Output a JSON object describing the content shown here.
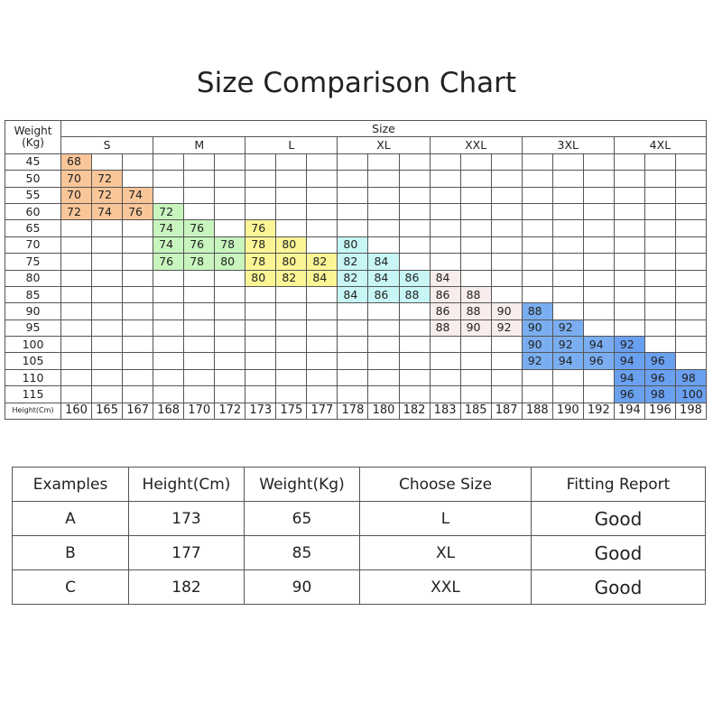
{
  "header": {
    "title": "Size Comparison Chart"
  },
  "grid": {
    "weight_label": "Weight\n(Kg)",
    "size_label": "Size",
    "height_label": "Height(Cm)",
    "sizes": [
      {
        "name": "S",
        "color": "#f9c699"
      },
      {
        "name": "M",
        "color": "#c8f5be"
      },
      {
        "name": "L",
        "color": "#fbf596"
      },
      {
        "name": "XL",
        "color": "#c8f6f6"
      },
      {
        "name": "XXL",
        "color": "#f8ecec"
      },
      {
        "name": "3XL",
        "color": "#7aaef0"
      },
      {
        "name": "4XL",
        "color": "#6aa0f0"
      }
    ],
    "heights": [
      160,
      165,
      167,
      168,
      170,
      172,
      173,
      175,
      177,
      178,
      180,
      182,
      183,
      185,
      187,
      188,
      190,
      192,
      194,
      196,
      198
    ],
    "rows": [
      {
        "weight": 45,
        "values": [
          68,
          null,
          null,
          null,
          null,
          null,
          null,
          null,
          null,
          null,
          null,
          null,
          null,
          null,
          null,
          null,
          null,
          null,
          null,
          null,
          null
        ]
      },
      {
        "weight": 50,
        "values": [
          70,
          72,
          null,
          null,
          null,
          null,
          null,
          null,
          null,
          null,
          null,
          null,
          null,
          null,
          null,
          null,
          null,
          null,
          null,
          null,
          null
        ]
      },
      {
        "weight": 55,
        "values": [
          70,
          72,
          74,
          null,
          null,
          null,
          null,
          null,
          null,
          null,
          null,
          null,
          null,
          null,
          null,
          null,
          null,
          null,
          null,
          null,
          null
        ]
      },
      {
        "weight": 60,
        "values": [
          72,
          74,
          76,
          72,
          null,
          null,
          null,
          null,
          null,
          null,
          null,
          null,
          null,
          null,
          null,
          null,
          null,
          null,
          null,
          null,
          null
        ]
      },
      {
        "weight": 65,
        "values": [
          null,
          null,
          null,
          74,
          76,
          null,
          76,
          null,
          null,
          null,
          null,
          null,
          null,
          null,
          null,
          null,
          null,
          null,
          null,
          null,
          null
        ]
      },
      {
        "weight": 70,
        "values": [
          null,
          null,
          null,
          74,
          76,
          78,
          78,
          80,
          null,
          80,
          null,
          null,
          null,
          null,
          null,
          null,
          null,
          null,
          null,
          null,
          null
        ]
      },
      {
        "weight": 75,
        "values": [
          null,
          null,
          null,
          76,
          78,
          80,
          78,
          80,
          82,
          82,
          84,
          null,
          null,
          null,
          null,
          null,
          null,
          null,
          null,
          null,
          null
        ]
      },
      {
        "weight": 80,
        "values": [
          null,
          null,
          null,
          null,
          null,
          null,
          80,
          82,
          84,
          82,
          84,
          86,
          84,
          null,
          null,
          null,
          null,
          null,
          null,
          null,
          null
        ]
      },
      {
        "weight": 85,
        "values": [
          null,
          null,
          null,
          null,
          null,
          null,
          null,
          null,
          null,
          84,
          86,
          88,
          86,
          88,
          null,
          null,
          null,
          null,
          null,
          null,
          null
        ]
      },
      {
        "weight": 90,
        "values": [
          null,
          null,
          null,
          null,
          null,
          null,
          null,
          null,
          null,
          null,
          null,
          null,
          86,
          88,
          90,
          88,
          null,
          null,
          null,
          null,
          null
        ]
      },
      {
        "weight": 95,
        "values": [
          null,
          null,
          null,
          null,
          null,
          null,
          null,
          null,
          null,
          null,
          null,
          null,
          88,
          90,
          92,
          90,
          92,
          null,
          null,
          null,
          null
        ]
      },
      {
        "weight": 100,
        "values": [
          null,
          null,
          null,
          null,
          null,
          null,
          null,
          null,
          null,
          null,
          null,
          null,
          null,
          null,
          null,
          90,
          92,
          94,
          92,
          null,
          null
        ]
      },
      {
        "weight": 105,
        "values": [
          null,
          null,
          null,
          null,
          null,
          null,
          null,
          null,
          null,
          null,
          null,
          null,
          null,
          null,
          null,
          92,
          94,
          96,
          94,
          96,
          null
        ]
      },
      {
        "weight": 110,
        "values": [
          null,
          null,
          null,
          null,
          null,
          null,
          null,
          null,
          null,
          null,
          null,
          null,
          null,
          null,
          null,
          null,
          null,
          null,
          94,
          96,
          98
        ]
      },
      {
        "weight": 115,
        "values": [
          null,
          null,
          null,
          null,
          null,
          null,
          null,
          null,
          null,
          null,
          null,
          null,
          null,
          null,
          null,
          null,
          null,
          null,
          96,
          98,
          100
        ]
      }
    ]
  },
  "examples": {
    "columns": [
      "Examples",
      "Height(Cm)",
      "Weight(Kg)",
      "Choose Size",
      "Fitting Report"
    ],
    "rows": [
      [
        "A",
        "173",
        "65",
        "L",
        "Good"
      ],
      [
        "B",
        "177",
        "85",
        "XL",
        "Good"
      ],
      [
        "C",
        "182",
        "90",
        "XXL",
        "Good"
      ]
    ]
  }
}
